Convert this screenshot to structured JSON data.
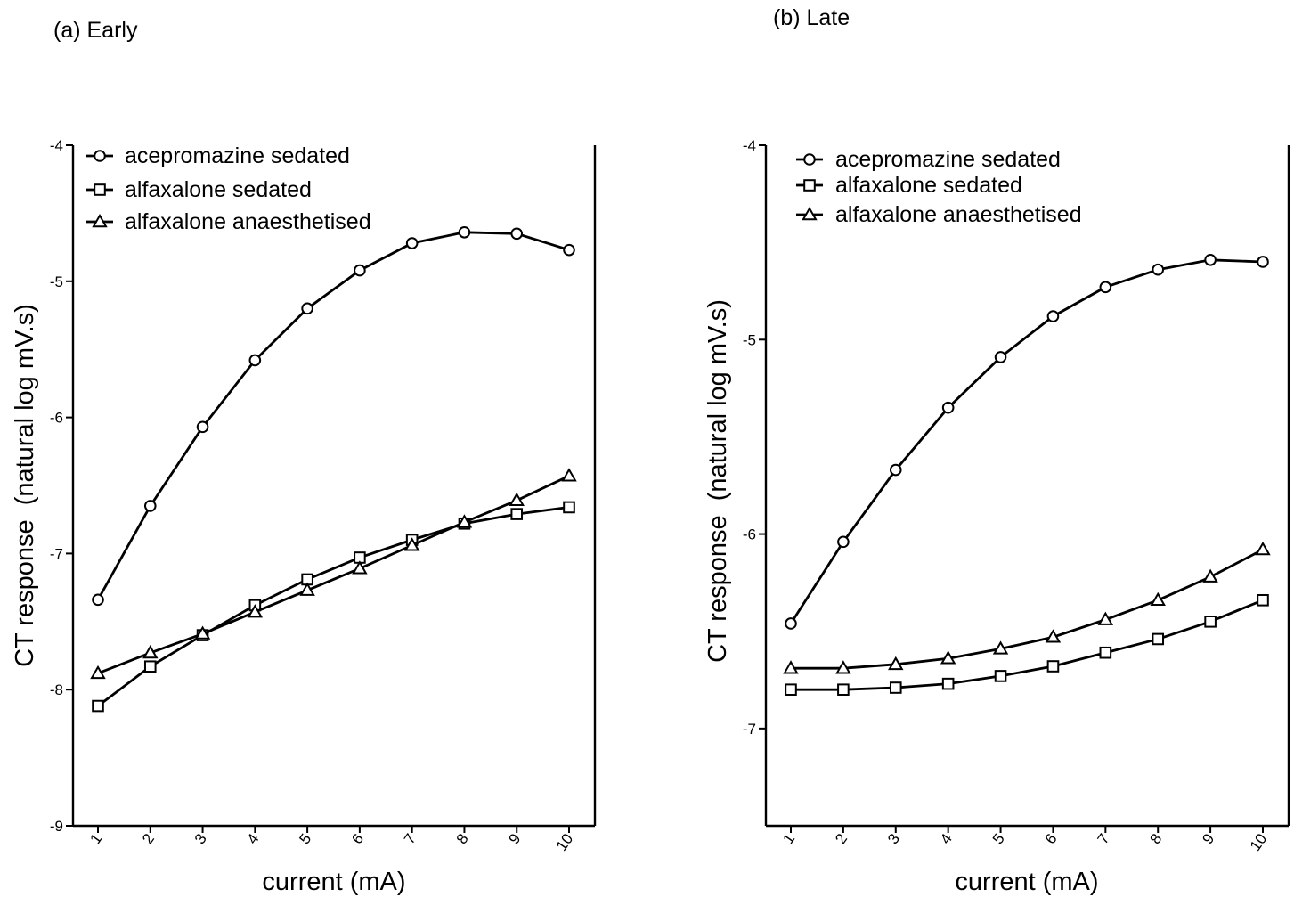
{
  "chart_data": [
    {
      "type": "line",
      "title": "(a) Early",
      "xlabel": "current (mA)",
      "ylabel": "CT response  (natural log mV.s)",
      "categories": [
        "1",
        "2",
        "3",
        "4",
        "5",
        "6",
        "7",
        "8",
        "9",
        "10"
      ],
      "yticks": [
        "-4",
        "-5",
        "-6",
        "-7",
        "-8",
        "-9"
      ],
      "ylim": [
        -9,
        -4
      ],
      "legend_position": "top-left",
      "series": [
        {
          "name": "acepromazine sedated",
          "marker": "circle",
          "values": [
            -7.34,
            -6.65,
            -6.07,
            -5.58,
            -5.2,
            -4.92,
            -4.72,
            -4.64,
            -4.65,
            -4.77
          ]
        },
        {
          "name": "alfaxalone sedated",
          "marker": "square",
          "values": [
            -8.12,
            -7.83,
            -7.6,
            -7.38,
            -7.19,
            -7.03,
            -6.9,
            -6.78,
            -6.71,
            -6.66
          ]
        },
        {
          "name": "alfaxalone anaesthetised",
          "marker": "triangle",
          "values": [
            -7.88,
            -7.73,
            -7.59,
            -7.43,
            -7.27,
            -7.11,
            -6.94,
            -6.77,
            -6.61,
            -6.43
          ]
        }
      ]
    },
    {
      "type": "line",
      "title": "(b) Late",
      "xlabel": "current (mA)",
      "ylabel": "CT response  (natural log mV.s)",
      "categories": [
        "1",
        "2",
        "3",
        "4",
        "5",
        "6",
        "7",
        "8",
        "9",
        "10"
      ],
      "yticks": [
        "-4",
        "-5",
        "-6",
        "-7"
      ],
      "ylim": [
        -7.5,
        -4
      ],
      "legend_position": "top-left",
      "series": [
        {
          "name": "acepromazine sedated",
          "marker": "circle",
          "values": [
            -6.46,
            -6.04,
            -5.67,
            -5.35,
            -5.09,
            -4.88,
            -4.73,
            -4.64,
            -4.59,
            -4.6
          ]
        },
        {
          "name": "alfaxalone sedated",
          "marker": "square",
          "values": [
            -6.8,
            -6.8,
            -6.79,
            -6.77,
            -6.73,
            -6.68,
            -6.61,
            -6.54,
            -6.45,
            -6.34
          ]
        },
        {
          "name": "alfaxalone anaesthetised",
          "marker": "triangle",
          "values": [
            -6.69,
            -6.69,
            -6.67,
            -6.64,
            -6.59,
            -6.53,
            -6.44,
            -6.34,
            -6.22,
            -6.08
          ]
        }
      ]
    }
  ]
}
